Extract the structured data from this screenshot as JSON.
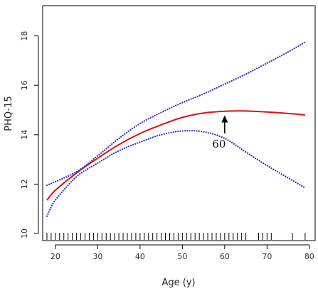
{
  "chart_data": {
    "type": "line",
    "title": "",
    "xlabel": "Age (y)",
    "ylabel": "PHQ-15",
    "xlim": [
      17,
      80
    ],
    "ylim": [
      10,
      19
    ],
    "xticks": [
      20,
      30,
      40,
      50,
      60,
      70,
      80
    ],
    "yticks": [
      10,
      12,
      14,
      16,
      18
    ],
    "grid": false,
    "legend": "none",
    "series": [
      {
        "role": "estimate",
        "color": "#dd1111",
        "style": "solid",
        "points": [
          [
            18,
            11.35
          ],
          [
            20,
            11.75
          ],
          [
            25,
            12.45
          ],
          [
            30,
            13.05
          ],
          [
            35,
            13.6
          ],
          [
            40,
            14.05
          ],
          [
            45,
            14.4
          ],
          [
            50,
            14.7
          ],
          [
            55,
            14.88
          ],
          [
            60,
            14.95
          ],
          [
            65,
            14.96
          ],
          [
            70,
            14.92
          ],
          [
            75,
            14.86
          ],
          [
            79,
            14.8
          ]
        ]
      },
      {
        "role": "upper-ci",
        "color": "#3333cc",
        "style": "dotted",
        "points": [
          [
            18,
            11.95
          ],
          [
            25,
            12.5
          ],
          [
            30,
            13.15
          ],
          [
            35,
            13.85
          ],
          [
            40,
            14.45
          ],
          [
            45,
            14.9
          ],
          [
            50,
            15.3
          ],
          [
            55,
            15.65
          ],
          [
            60,
            16.05
          ],
          [
            65,
            16.45
          ],
          [
            70,
            16.9
          ],
          [
            75,
            17.35
          ],
          [
            79,
            17.75
          ]
        ]
      },
      {
        "role": "lower-ci",
        "color": "#3333cc",
        "style": "dotted",
        "points": [
          [
            18,
            10.7
          ],
          [
            20,
            11.35
          ],
          [
            25,
            12.3
          ],
          [
            30,
            12.85
          ],
          [
            35,
            13.35
          ],
          [
            40,
            13.7
          ],
          [
            45,
            14.0
          ],
          [
            50,
            14.15
          ],
          [
            55,
            14.12
          ],
          [
            60,
            13.85
          ],
          [
            65,
            13.3
          ],
          [
            70,
            12.75
          ],
          [
            75,
            12.25
          ],
          [
            79,
            11.85
          ]
        ]
      }
    ],
    "annotation": {
      "text": "60",
      "arrow_x": 60,
      "arrow_tip_y": 14.9,
      "arrow_tail_y": 14.05
    },
    "rug": [
      18,
      19,
      20,
      21,
      22,
      23,
      24,
      25,
      26,
      27,
      28,
      29,
      30,
      31,
      32,
      33,
      34,
      35,
      36,
      37,
      38,
      39,
      40,
      41,
      42,
      43,
      44,
      45,
      46,
      47,
      48,
      49,
      50,
      51,
      52,
      53,
      54,
      55,
      56,
      57,
      58,
      59,
      60,
      61,
      62,
      63,
      64,
      65,
      68,
      69,
      70,
      71,
      76,
      79
    ]
  }
}
